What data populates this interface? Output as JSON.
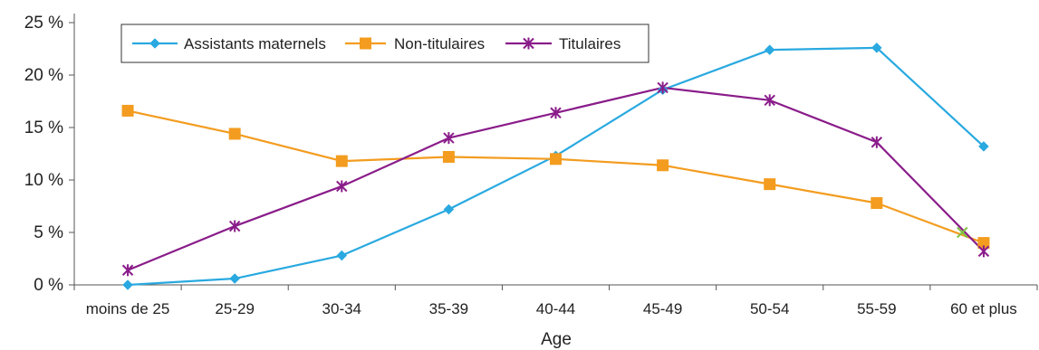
{
  "chart_data": {
    "type": "line",
    "categories": [
      "moins de 25",
      "25-29",
      "30-34",
      "35-39",
      "40-44",
      "45-49",
      "50-54",
      "55-59",
      "60 et plus"
    ],
    "series": [
      {
        "name": "Assistants maternels",
        "color": "#29a9e0",
        "marker": "diamond",
        "values": [
          0.0,
          0.6,
          2.8,
          7.2,
          12.3,
          18.6,
          22.4,
          22.6,
          13.2
        ]
      },
      {
        "name": "Non-titulaires",
        "color": "#f39c1f",
        "marker": "square",
        "values": [
          16.6,
          14.4,
          11.8,
          12.2,
          12.0,
          11.4,
          9.6,
          7.8,
          4.0
        ]
      },
      {
        "name": "Titulaires",
        "color": "#8a1c8a",
        "marker": "star",
        "values": [
          1.4,
          5.6,
          9.4,
          14.0,
          16.4,
          18.8,
          17.6,
          13.6,
          3.2
        ]
      }
    ],
    "extra_marker": {
      "category": "60 et plus",
      "value": 5.0,
      "offset_category": -0.2,
      "color": "#7fc241",
      "marker": "x"
    },
    "title": "",
    "xlabel": "Age",
    "ylabel": "",
    "ylim": [
      0,
      25
    ],
    "yticks": [
      0,
      5,
      10,
      15,
      20,
      25
    ],
    "ytick_labels": [
      "0 %",
      "5 %",
      "10 %",
      "15 %",
      "20 %",
      "25 %"
    ],
    "grid": false,
    "legend_position": "top-left"
  }
}
